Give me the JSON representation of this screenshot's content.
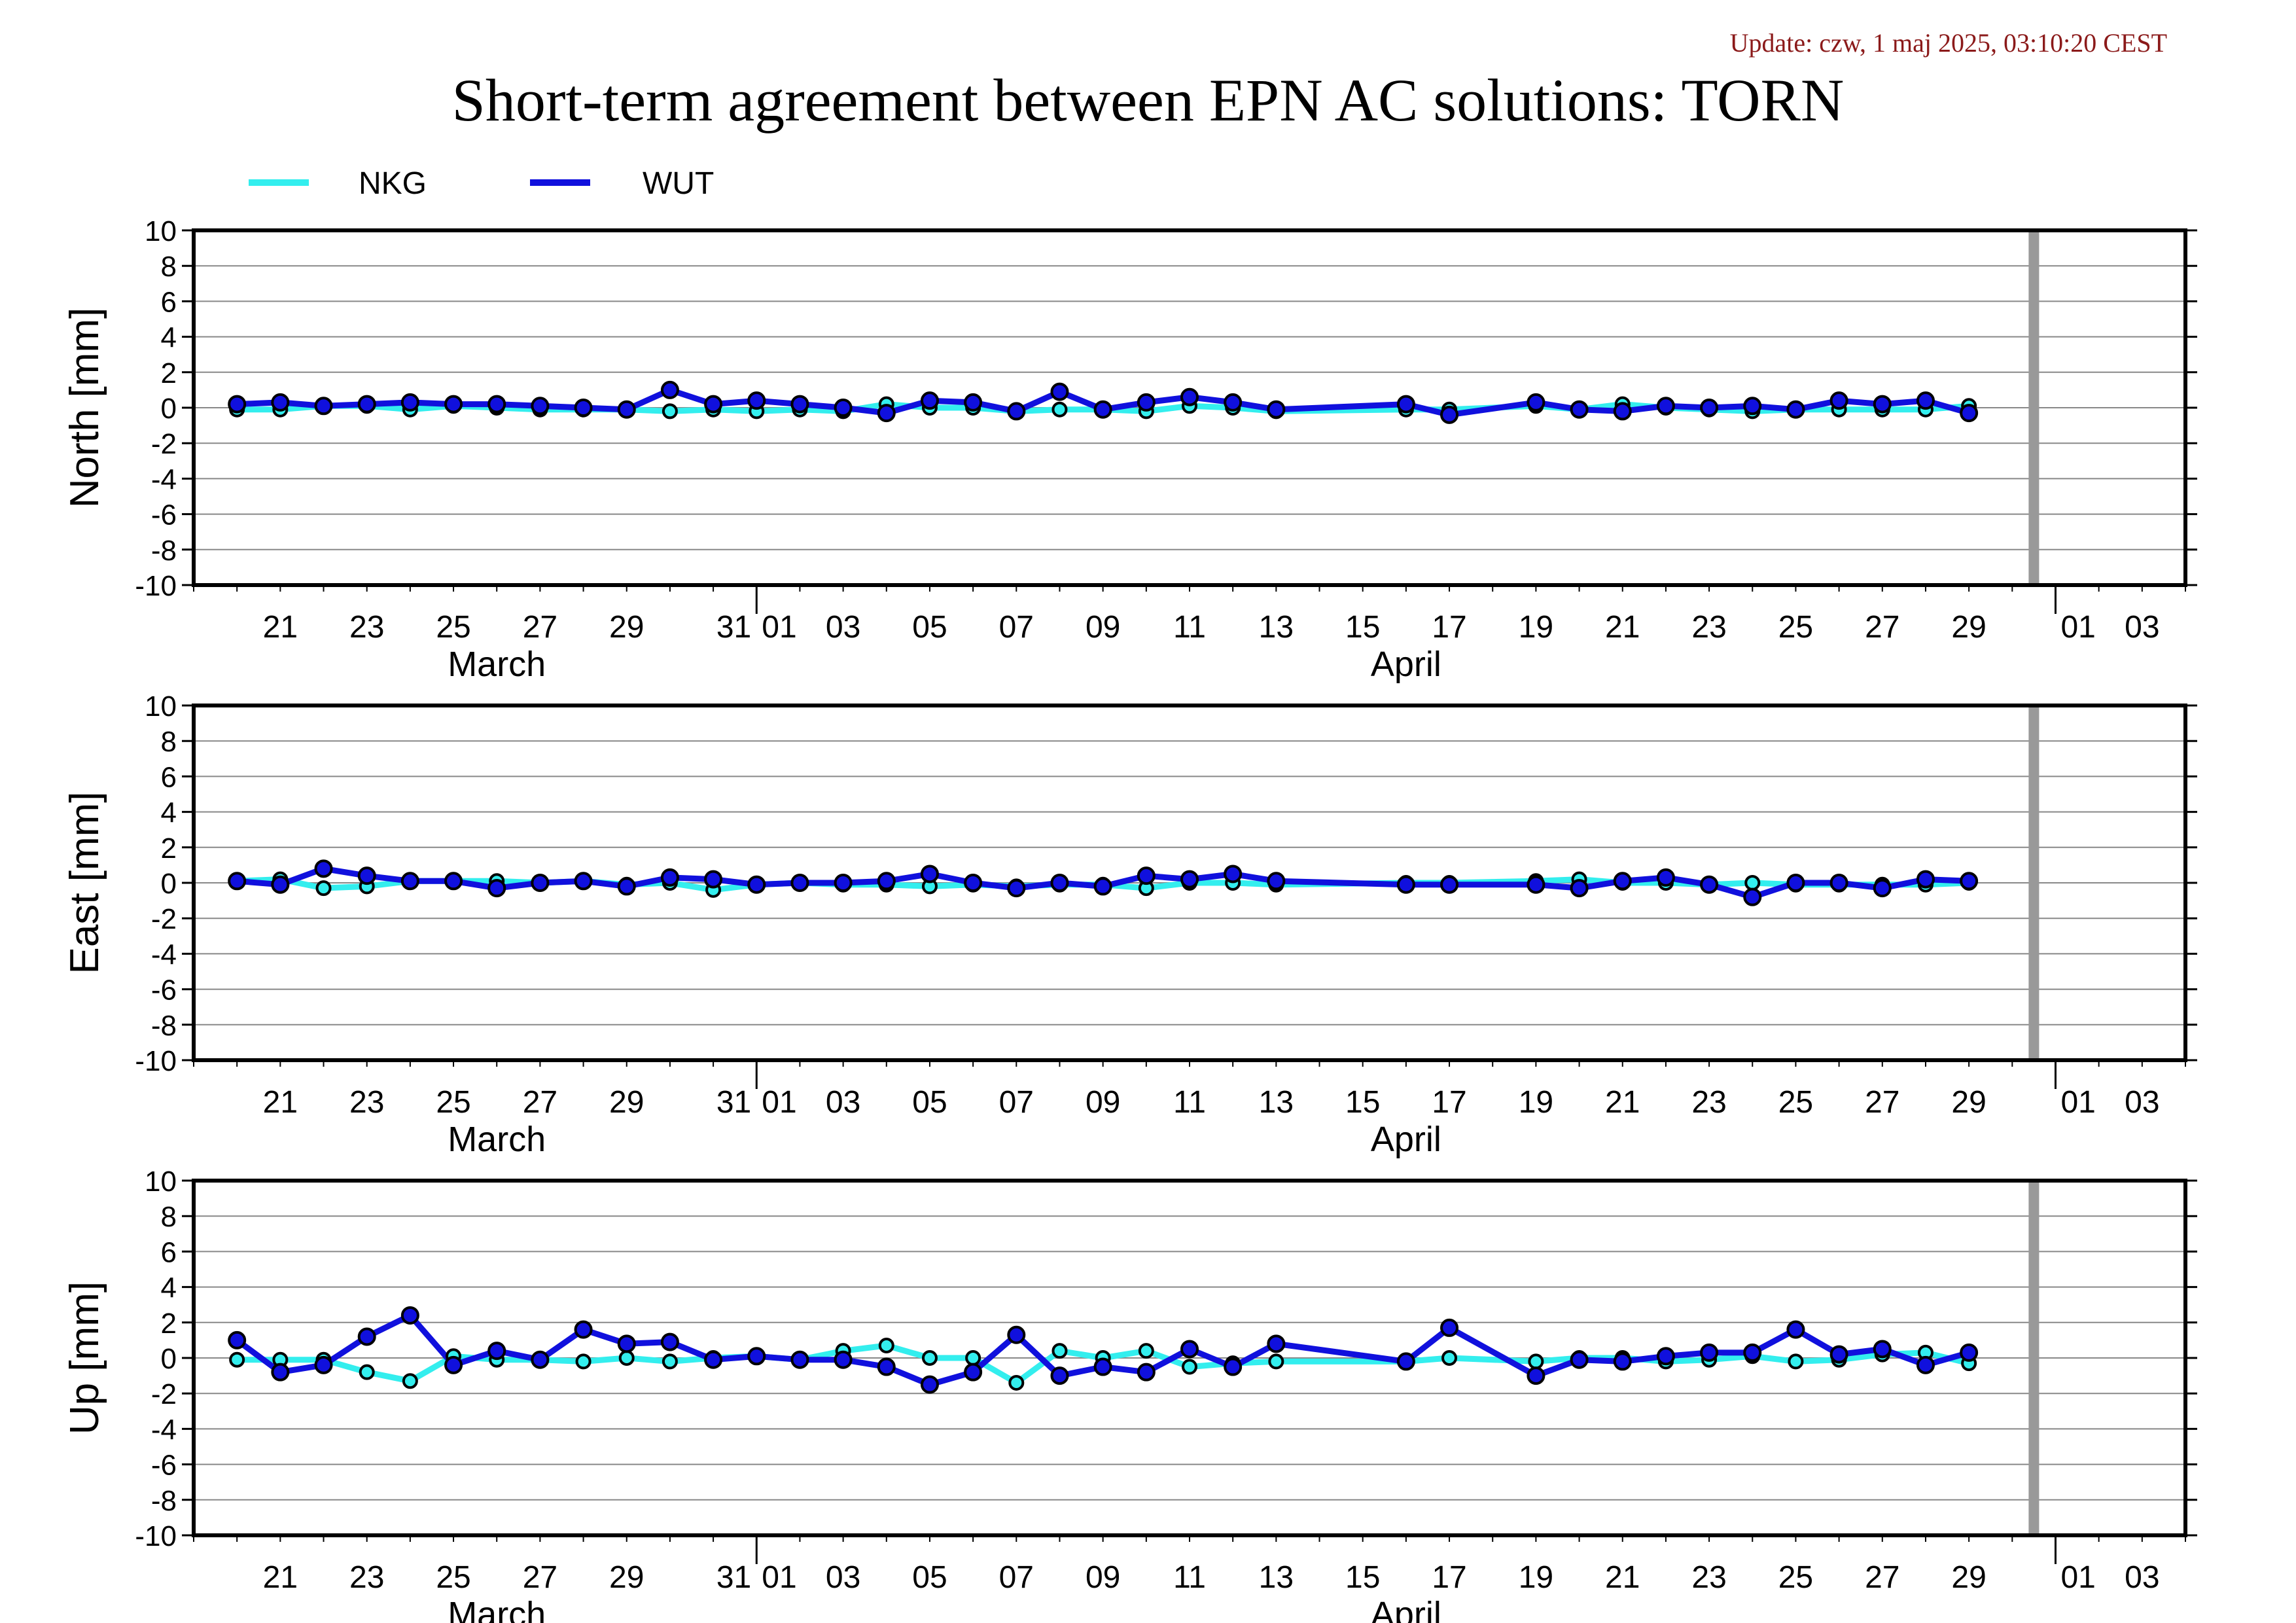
{
  "update_text": "Update: czw, 1 maj 2025, 03:10:20 CEST",
  "title": "Short-term agreement between EPN AC solutions: TORN",
  "colors": {
    "NKG": "#33eeee",
    "WUT": "#1010dd",
    "marker_edge": "#000000",
    "grid": "#888888",
    "divider": "#999999",
    "update": "#8b1a1a"
  },
  "legend": [
    {
      "name": "NKG",
      "color": "#33eeee"
    },
    {
      "name": "WUT",
      "color": "#1010dd"
    }
  ],
  "chart_data": {
    "type": "line",
    "x_axis": {
      "unit": "day",
      "range": [
        "2025-03-19",
        "2025-05-04"
      ],
      "tick_labels": [
        "21",
        "23",
        "25",
        "27",
        "29",
        "31",
        "01",
        "03",
        "05",
        "07",
        "09",
        "11",
        "13",
        "15",
        "17",
        "19",
        "21",
        "23",
        "25",
        "27",
        "29",
        "01",
        "03"
      ],
      "month_labels": [
        "March",
        "April"
      ],
      "current_day_marker": "2025-04-30"
    },
    "x": [
      "2025-03-20",
      "2025-03-21",
      "2025-03-22",
      "2025-03-23",
      "2025-03-24",
      "2025-03-25",
      "2025-03-26",
      "2025-03-27",
      "2025-03-28",
      "2025-03-29",
      "2025-03-30",
      "2025-03-31",
      "2025-04-01",
      "2025-04-02",
      "2025-04-03",
      "2025-04-04",
      "2025-04-05",
      "2025-04-06",
      "2025-04-07",
      "2025-04-08",
      "2025-04-09",
      "2025-04-10",
      "2025-04-11",
      "2025-04-12",
      "2025-04-13",
      "2025-04-16",
      "2025-04-17",
      "2025-04-19",
      "2025-04-20",
      "2025-04-21",
      "2025-04-22",
      "2025-04-23",
      "2025-04-24",
      "2025-04-25",
      "2025-04-26",
      "2025-04-27",
      "2025-04-28",
      "2025-04-29"
    ],
    "panels": [
      {
        "ylabel": "North [mm]",
        "ylim": [
          -10,
          10
        ],
        "yticks": [
          10,
          8,
          6,
          4,
          2,
          0,
          -2,
          -4,
          -6,
          -8,
          -10
        ],
        "series": [
          {
            "name": "NKG",
            "values": [
              -0.1,
              -0.1,
              0.1,
              0.1,
              -0.1,
              0.1,
              0.0,
              -0.1,
              -0.1,
              -0.1,
              -0.2,
              -0.1,
              -0.2,
              -0.1,
              -0.2,
              0.2,
              0.0,
              0.0,
              -0.2,
              -0.1,
              -0.1,
              -0.2,
              0.1,
              0.0,
              -0.2,
              -0.1,
              -0.1,
              0.1,
              -0.1,
              0.2,
              0.0,
              -0.1,
              -0.2,
              -0.1,
              -0.1,
              -0.1,
              -0.1,
              0.1
            ]
          },
          {
            "name": "WUT",
            "values": [
              0.2,
              0.3,
              0.1,
              0.2,
              0.3,
              0.2,
              0.2,
              0.1,
              0.0,
              -0.1,
              1.0,
              0.2,
              0.4,
              0.2,
              0.0,
              -0.3,
              0.4,
              0.3,
              -0.2,
              0.9,
              -0.1,
              0.3,
              0.6,
              0.3,
              -0.1,
              0.2,
              -0.4,
              0.3,
              -0.1,
              -0.2,
              0.1,
              0.0,
              0.1,
              -0.1,
              0.4,
              0.2,
              0.4,
              -0.3
            ]
          }
        ]
      },
      {
        "ylabel": "East [mm]",
        "ylim": [
          -10,
          10
        ],
        "yticks": [
          10,
          8,
          6,
          4,
          2,
          0,
          -2,
          -4,
          -6,
          -8,
          -10
        ],
        "series": [
          {
            "name": "NKG",
            "values": [
              0.1,
              0.2,
              -0.3,
              -0.2,
              0.1,
              0.1,
              0.1,
              0.0,
              0.1,
              -0.1,
              0.0,
              -0.4,
              -0.1,
              0.0,
              -0.1,
              -0.1,
              -0.2,
              -0.1,
              -0.2,
              -0.1,
              -0.1,
              -0.3,
              0.0,
              0.0,
              -0.1,
              0.0,
              0.0,
              0.1,
              0.2,
              0.0,
              0.0,
              -0.1,
              0.0,
              -0.1,
              -0.1,
              -0.1,
              -0.1,
              0.0
            ]
          },
          {
            "name": "WUT",
            "values": [
              0.1,
              -0.1,
              0.8,
              0.4,
              0.1,
              0.1,
              -0.3,
              0.0,
              0.1,
              -0.2,
              0.3,
              0.2,
              -0.1,
              0.0,
              0.0,
              0.1,
              0.5,
              0.0,
              -0.3,
              0.0,
              -0.2,
              0.4,
              0.2,
              0.5,
              0.1,
              -0.1,
              -0.1,
              -0.1,
              -0.3,
              0.1,
              0.3,
              -0.1,
              -0.8,
              0.0,
              0.0,
              -0.3,
              0.2,
              0.1
            ]
          }
        ]
      },
      {
        "ylabel": "Up [mm]",
        "ylim": [
          -10,
          10
        ],
        "yticks": [
          10,
          8,
          6,
          4,
          2,
          0,
          -2,
          -4,
          -6,
          -8,
          -10
        ],
        "series": [
          {
            "name": "NKG",
            "values": [
              -0.1,
              -0.1,
              -0.1,
              -0.8,
              -1.3,
              0.1,
              -0.1,
              -0.1,
              -0.2,
              0.0,
              -0.2,
              0.0,
              0.1,
              -0.1,
              0.4,
              0.7,
              0.0,
              0.0,
              -1.4,
              0.4,
              0.0,
              0.4,
              -0.5,
              -0.3,
              -0.2,
              -0.2,
              0.0,
              -0.2,
              0.0,
              0.0,
              -0.2,
              -0.1,
              0.1,
              -0.2,
              -0.1,
              0.2,
              0.3,
              -0.3
            ]
          },
          {
            "name": "WUT",
            "values": [
              1.0,
              -0.8,
              -0.4,
              1.2,
              2.4,
              -0.4,
              0.4,
              -0.1,
              1.6,
              0.8,
              0.9,
              -0.1,
              0.1,
              -0.1,
              -0.1,
              -0.5,
              -1.5,
              -0.8,
              1.3,
              -1.0,
              -0.5,
              -0.8,
              0.5,
              -0.5,
              0.8,
              -0.2,
              1.7,
              -1.0,
              -0.1,
              -0.2,
              0.1,
              0.3,
              0.3,
              1.6,
              0.2,
              0.5,
              -0.4,
              0.3
            ]
          }
        ]
      }
    ]
  }
}
